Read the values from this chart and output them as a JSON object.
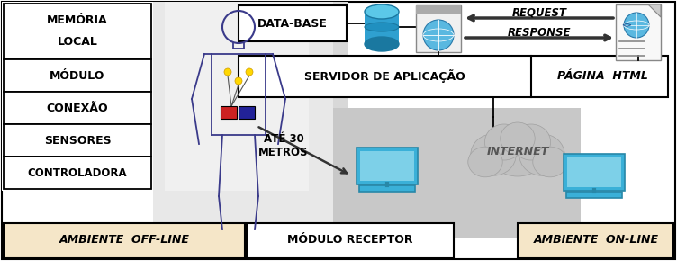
{
  "fig_width": 7.52,
  "fig_height": 2.9,
  "dpi": 100,
  "bg_color": "#ffffff",
  "left_box_label": "AMBIENTE  OFF-LINE",
  "mid_box_label": "MÓDULO RECEPTOR",
  "right_box_label": "AMBIENTE  ON-LINE",
  "database_label": "DATA-BASE",
  "server_label": "SERVIDOR DE APLICAÇÃO",
  "page_label": "PÁGINA HTML",
  "request_label": "REQUEST",
  "response_label": "RESPONSE",
  "internet_label": "INTERNET",
  "ate_label": "ATÉ 30\nMETROS",
  "left_labels": [
    "MEMÓRIA\nLOCAL",
    "MÓDULO",
    "CONEXÃO",
    "SENSORES",
    "CONTROLADORA"
  ],
  "gray_left": "#d8d8d8",
  "gray_mid": "#c8c8c8",
  "beige": "#f5e6c8",
  "human_color": "#3a3a8a",
  "sensor_color": "#FFD700",
  "device_red": "#cc2222",
  "device_blue": "#222299",
  "laptop_color": "#3ab0d8",
  "laptop_dark": "#2888a8"
}
